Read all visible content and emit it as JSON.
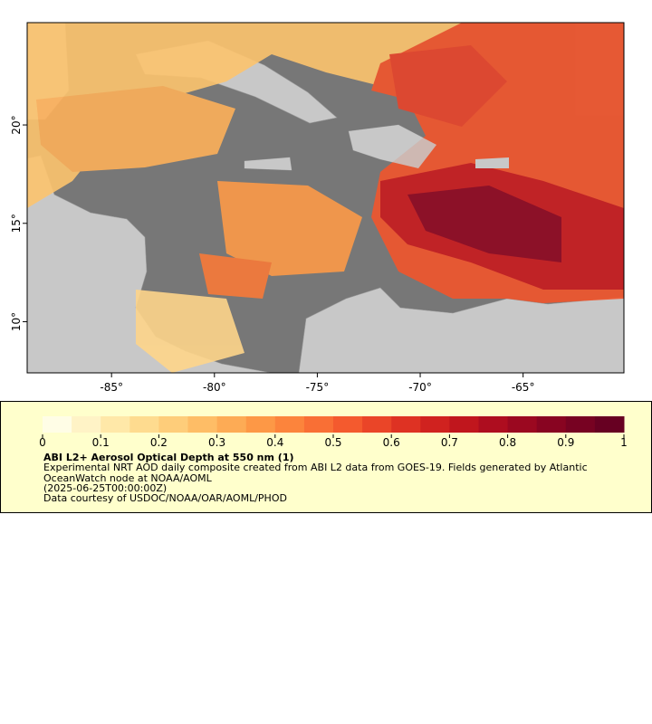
{
  "map": {
    "xlim": [
      -89.1,
      -60.1
    ],
    "ylim": [
      7.4,
      25.2
    ],
    "xticks": [
      {
        "value": -85,
        "label": "-85°"
      },
      {
        "value": -80,
        "label": "-80°"
      },
      {
        "value": -75,
        "label": "-75°"
      },
      {
        "value": -70,
        "label": "-70°"
      },
      {
        "value": -65,
        "label": "-65°"
      }
    ],
    "yticks": [
      {
        "value": 10,
        "label": "10°"
      },
      {
        "value": 15,
        "label": "15°"
      },
      {
        "value": 20,
        "label": "20°"
      }
    ]
  },
  "legend": {
    "clim": [
      0,
      1
    ],
    "ticks": [
      0,
      0.1,
      0.2,
      0.3,
      0.4,
      0.5,
      0.6,
      0.7,
      0.8,
      0.9,
      1
    ],
    "colors": [
      "#fffde6",
      "#fff3c6",
      "#ffe8a8",
      "#fedb8f",
      "#fecd7a",
      "#febd66",
      "#fdab55",
      "#fd9846",
      "#fc843c",
      "#f96f35",
      "#f45a2e",
      "#ea4528",
      "#de3223",
      "#d0221f",
      "#c0161d",
      "#ae0d1f",
      "#9b0820",
      "#880421",
      "#770222",
      "#670022"
    ],
    "title": "ABI L2+ Aerosol Optical Depth at 550 nm (1)",
    "description": "Experimental NRT AOD daily composite created from ABI L2 data from GOES-19. Fields generated by Atlantic OceanWatch node at NOAA/AOML",
    "time": "(2025-06-25T00:00:00Z)",
    "credit": "Data courtesy of USDOC/NOAA/OAR/AOML/PHOD"
  }
}
